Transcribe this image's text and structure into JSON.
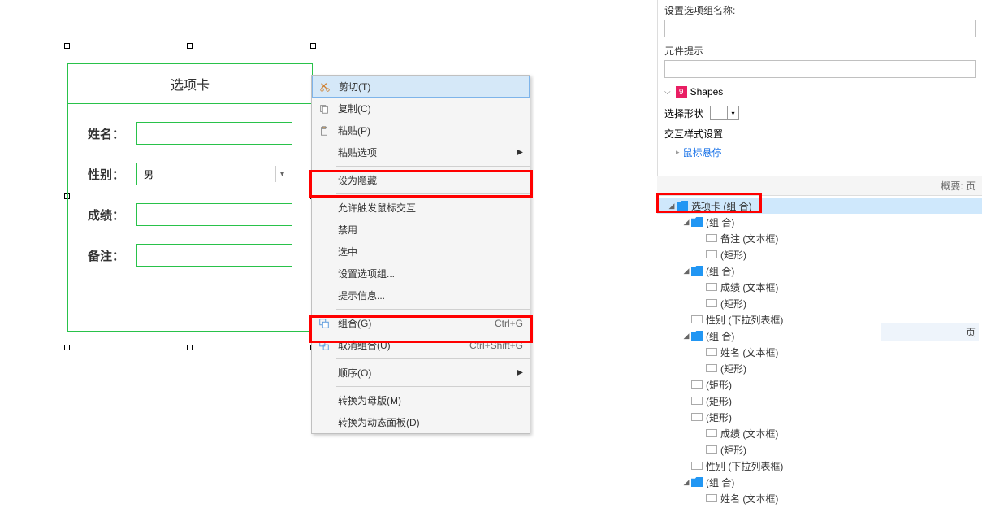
{
  "form": {
    "title": "选项卡",
    "labels": {
      "name": "姓名：",
      "gender": "性别：",
      "score": "成绩：",
      "remark": "备注："
    },
    "gender_value": "男"
  },
  "context_menu": {
    "cut": "剪切(T)",
    "copy": "复制(C)",
    "paste": "粘贴(P)",
    "paste_options": "粘贴选项",
    "set_hidden": "设为隐藏",
    "allow_mouse": "允许触发鼠标交互",
    "disable": "禁用",
    "select": "选中",
    "set_option_group": "设置选项组...",
    "hint_info": "提示信息...",
    "group": "组合(G)",
    "group_shortcut": "Ctrl+G",
    "ungroup": "取消组合(U)",
    "ungroup_shortcut": "Ctrl+Shift+G",
    "order": "顺序(O)",
    "convert_master": "转换为母版(M)",
    "convert_dynamic": "转换为动态面板(D)"
  },
  "panel": {
    "group_name_label": "设置选项组名称:",
    "widget_hint_label": "元件提示",
    "shapes_count": "9",
    "shapes_label": "Shapes",
    "select_shape_label": "选择形状",
    "interact_style_label": "交互样式设置",
    "mouse_hover_link": "鼠标悬停"
  },
  "tree": {
    "header_right": "概要: 页",
    "items": [
      {
        "indent": 0,
        "type": "folder",
        "label": "选项卡 (组 合)",
        "selected": true
      },
      {
        "indent": 1,
        "type": "folder",
        "label": "(组 合)"
      },
      {
        "indent": 2,
        "type": "rect",
        "label": "备注 (文本框)"
      },
      {
        "indent": 2,
        "type": "rect",
        "label": "(矩形)"
      },
      {
        "indent": 1,
        "type": "folder",
        "label": "(组 合)"
      },
      {
        "indent": 2,
        "type": "rect",
        "label": "成绩 (文本框)"
      },
      {
        "indent": 2,
        "type": "rect",
        "label": "(矩形)"
      },
      {
        "indent": 1,
        "type": "rect",
        "label": "性别 (下拉列表框)"
      },
      {
        "indent": 1,
        "type": "folder",
        "label": "(组 合)"
      },
      {
        "indent": 2,
        "type": "rect",
        "label": "姓名 (文本框)"
      },
      {
        "indent": 2,
        "type": "rect",
        "label": "(矩形)"
      },
      {
        "indent": 1,
        "type": "rect",
        "label": "(矩形)"
      },
      {
        "indent": 1,
        "type": "rect",
        "label": "(矩形)"
      },
      {
        "indent": 1,
        "type": "rect",
        "label": "(矩形)"
      },
      {
        "indent": 2,
        "type": "rect",
        "label": "成绩 (文本框)"
      },
      {
        "indent": 2,
        "type": "rect",
        "label": "(矩形)"
      },
      {
        "indent": 1,
        "type": "rect",
        "label": "性别 (下拉列表框)"
      },
      {
        "indent": 1,
        "type": "folder",
        "label": "(组 合)"
      },
      {
        "indent": 2,
        "type": "rect",
        "label": "姓名 (文本框)"
      }
    ],
    "pages_label": "页"
  }
}
